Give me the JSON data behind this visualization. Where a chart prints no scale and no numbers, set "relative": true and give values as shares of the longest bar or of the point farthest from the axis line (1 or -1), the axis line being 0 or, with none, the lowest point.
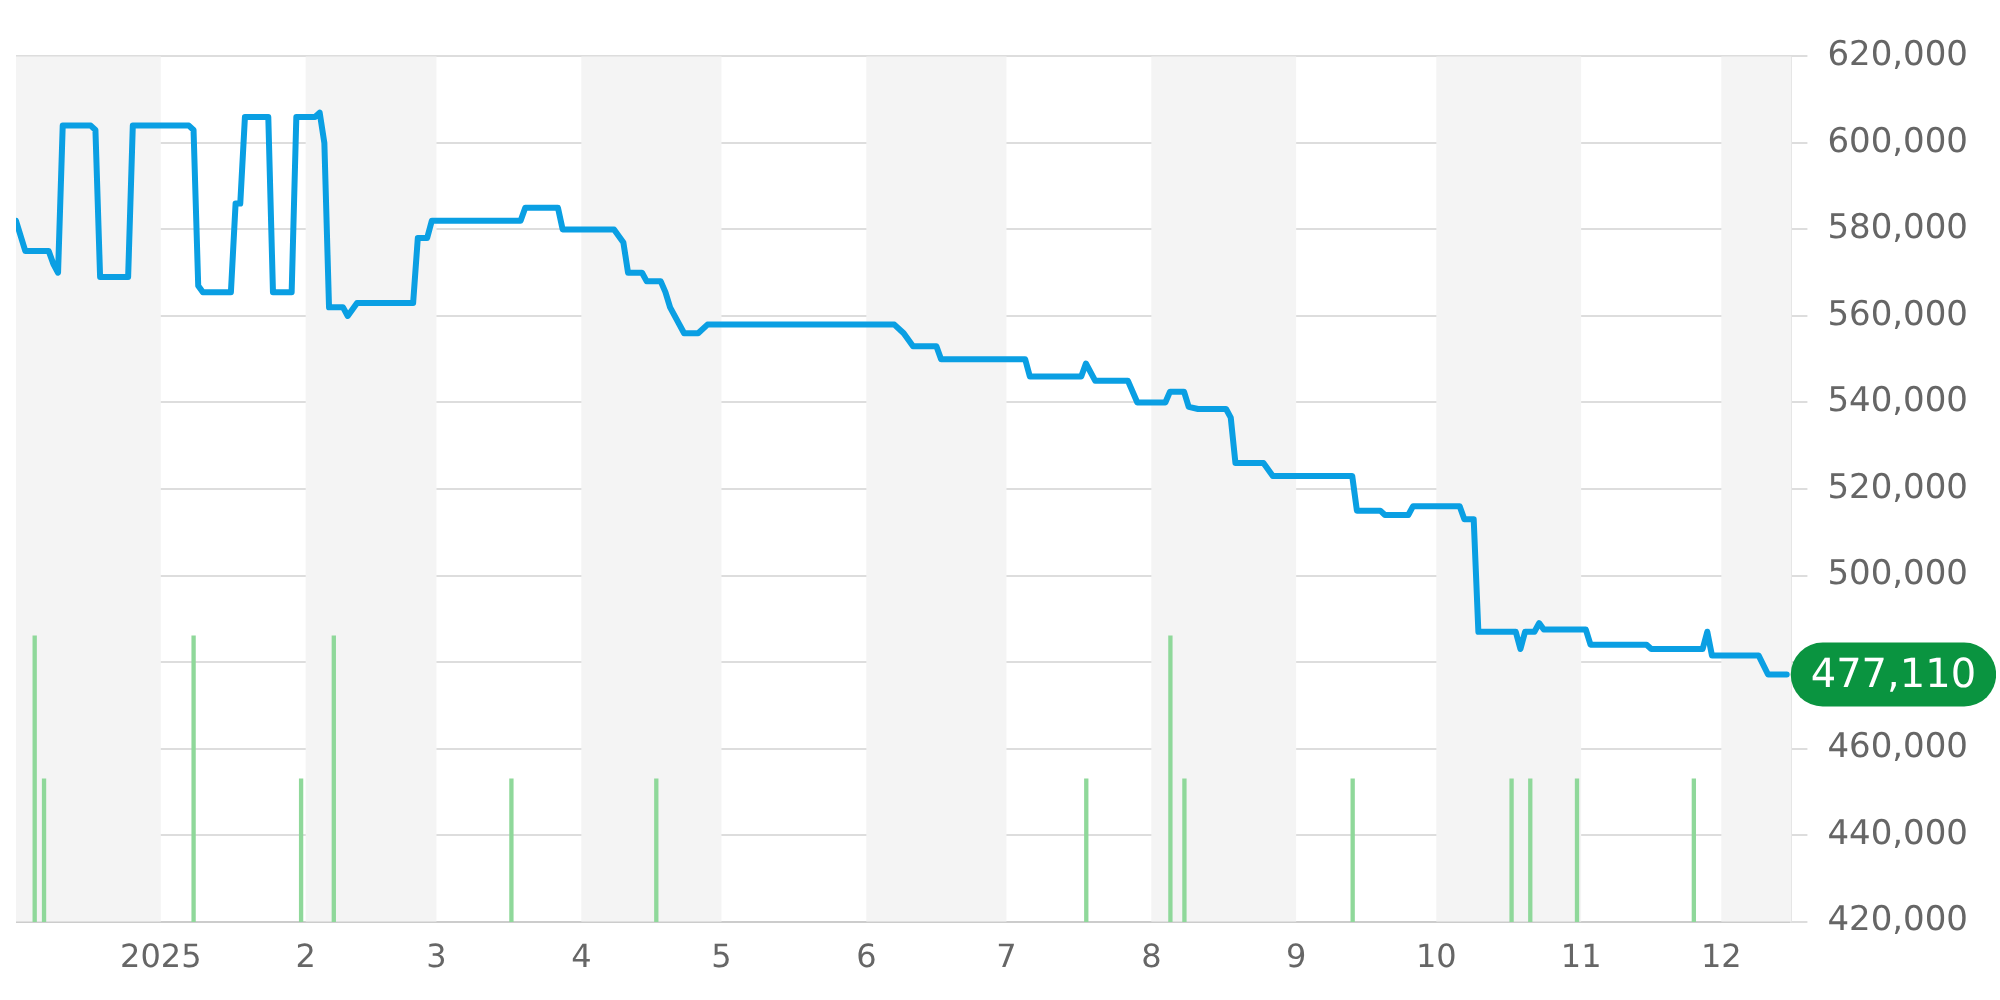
{
  "chart_data": [
    {
      "type": "line",
      "xlim": [
        "2024-12-01",
        "2025-12-16"
      ],
      "xticks": [
        {
          "value": "2025-01-01",
          "label": "2025"
        },
        {
          "value": "2025-02-01",
          "label": "2"
        },
        {
          "value": "2025-03-01",
          "label": "3"
        },
        {
          "value": "2025-04-01",
          "label": "4"
        },
        {
          "value": "2025-05-01",
          "label": "5"
        },
        {
          "value": "2025-06-01",
          "label": "6"
        },
        {
          "value": "2025-07-01",
          "label": "7"
        },
        {
          "value": "2025-08-01",
          "label": "8"
        },
        {
          "value": "2025-09-01",
          "label": "9"
        },
        {
          "value": "2025-10-01",
          "label": "10"
        },
        {
          "value": "2025-11-01",
          "label": "11"
        },
        {
          "value": "2025-12-01",
          "label": "12"
        }
      ],
      "ylim": [
        420000,
        620000
      ],
      "yticks": [
        {
          "value": 420000,
          "label": "420,000"
        },
        {
          "value": 440000,
          "label": "440,000"
        },
        {
          "value": 460000,
          "label": "460,000"
        },
        {
          "value": 480000,
          "label": null
        },
        {
          "value": 500000,
          "label": "500,000"
        },
        {
          "value": 520000,
          "label": "520,000"
        },
        {
          "value": 540000,
          "label": "540,000"
        },
        {
          "value": 560000,
          "label": "560,000"
        },
        {
          "value": 580000,
          "label": "580,000"
        },
        {
          "value": 600000,
          "label": "600,000"
        },
        {
          "value": 620000,
          "label": "620,000"
        }
      ],
      "grid": "y",
      "legend": false,
      "marker": "none",
      "line_style": "solid",
      "bands": [
        {
          "axis": "x",
          "from": "2024-12-01",
          "to": "2025-01-01",
          "color": "#f4f4f4"
        },
        {
          "axis": "x",
          "from": "2025-02-01",
          "to": "2025-03-01",
          "color": "#f4f4f4"
        },
        {
          "axis": "x",
          "from": "2025-04-01",
          "to": "2025-05-01",
          "color": "#f4f4f4"
        },
        {
          "axis": "x",
          "from": "2025-06-01",
          "to": "2025-07-01",
          "color": "#f4f4f4"
        },
        {
          "axis": "x",
          "from": "2025-08-01",
          "to": "2025-09-01",
          "color": "#f4f4f4"
        },
        {
          "axis": "x",
          "from": "2025-10-01",
          "to": "2025-11-01",
          "color": "#f4f4f4"
        },
        {
          "axis": "x",
          "from": "2025-12-01",
          "to": "2025-12-16",
          "color": "#f4f4f4"
        }
      ],
      "annotations": [
        {
          "text": "477,110",
          "x": "2025-12-15",
          "y": 477110
        }
      ],
      "series": [
        {
          "color": "#0a9fe3",
          "x": [
            "2024-12-01",
            "2024-12-03",
            "2024-12-08",
            "2024-12-09",
            "2024-12-10",
            "2024-12-11",
            "2024-12-17",
            "2024-12-18",
            "2024-12-19",
            "2024-12-25",
            "2024-12-26",
            "2025-01-07",
            "2025-01-08",
            "2025-01-09",
            "2025-01-10",
            "2025-01-16",
            "2025-01-17",
            "2025-01-18",
            "2025-01-19",
            "2025-01-24",
            "2025-01-25",
            "2025-01-29",
            "2025-01-30",
            "2025-02-03",
            "2025-02-04",
            "2025-02-05",
            "2025-02-06",
            "2025-02-09",
            "2025-02-10",
            "2025-02-12",
            "2025-02-24",
            "2025-02-25",
            "2025-02-27",
            "2025-02-28",
            "2025-03-19",
            "2025-03-20",
            "2025-03-27",
            "2025-03-28",
            "2025-04-08",
            "2025-04-10",
            "2025-04-11",
            "2025-04-14",
            "2025-04-15",
            "2025-04-18",
            "2025-04-19",
            "2025-04-20",
            "2025-04-23",
            "2025-04-26",
            "2025-04-28",
            "2025-06-07",
            "2025-06-09",
            "2025-06-11",
            "2025-06-16",
            "2025-06-17",
            "2025-07-05",
            "2025-07-06",
            "2025-07-17",
            "2025-07-18",
            "2025-07-20",
            "2025-07-27",
            "2025-07-29",
            "2025-08-04",
            "2025-08-05",
            "2025-08-08",
            "2025-08-09",
            "2025-08-11",
            "2025-08-17",
            "2025-08-18",
            "2025-08-19",
            "2025-08-25",
            "2025-08-27",
            "2025-09-13",
            "2025-09-14",
            "2025-09-19",
            "2025-09-20",
            "2025-09-25",
            "2025-09-26",
            "2025-10-06",
            "2025-10-07",
            "2025-10-09",
            "2025-10-10",
            "2025-10-18",
            "2025-10-19",
            "2025-10-20",
            "2025-10-22",
            "2025-10-23",
            "2025-10-24",
            "2025-11-02",
            "2025-11-03",
            "2025-11-15",
            "2025-11-16",
            "2025-11-27",
            "2025-11-28",
            "2025-11-29",
            "2025-12-09",
            "2025-12-11",
            "2025-12-15"
          ],
          "values": [
            582000,
            575000,
            575000,
            572000,
            570000,
            604000,
            604000,
            603000,
            569000,
            569000,
            604000,
            604000,
            603000,
            567000,
            565500,
            565500,
            586000,
            586000,
            606000,
            606000,
            565500,
            565500,
            606000,
            606000,
            607000,
            600000,
            562000,
            562000,
            560000,
            563000,
            563000,
            578000,
            578000,
            582000,
            582000,
            585000,
            585000,
            580000,
            580000,
            577000,
            570000,
            570000,
            568000,
            568000,
            565500,
            562000,
            556000,
            556000,
            558000,
            558000,
            556000,
            553000,
            553000,
            550000,
            550000,
            546000,
            546000,
            549000,
            545000,
            545000,
            540000,
            540000,
            542500,
            542500,
            539000,
            538500,
            538500,
            536500,
            526000,
            526000,
            523000,
            523000,
            515000,
            515000,
            514000,
            514000,
            516000,
            516000,
            513000,
            513000,
            487000,
            487000,
            483000,
            487000,
            487000,
            489000,
            487500,
            487500,
            484000,
            484000,
            483000,
            483000,
            487000,
            481500,
            481500,
            477110,
            477110
          ]
        }
      ]
    },
    {
      "type": "bar",
      "relative": true,
      "tick_labels": false,
      "color": "#8fd89a",
      "xlim": [
        "2024-12-01",
        "2025-12-16"
      ],
      "x": [
        "2024-12-05",
        "2024-12-07",
        "2025-01-08",
        "2025-01-31",
        "2025-02-07",
        "2025-03-17",
        "2025-04-17",
        "2025-07-18",
        "2025-08-05",
        "2025-08-08",
        "2025-09-13",
        "2025-10-17",
        "2025-10-21",
        "2025-10-31",
        "2025-11-25"
      ],
      "values": [
        1,
        0.5,
        1,
        0.5,
        1,
        0.5,
        0.5,
        0.5,
        1,
        0.5,
        0.5,
        0.5,
        0.5,
        0.5,
        0.5
      ]
    }
  ]
}
